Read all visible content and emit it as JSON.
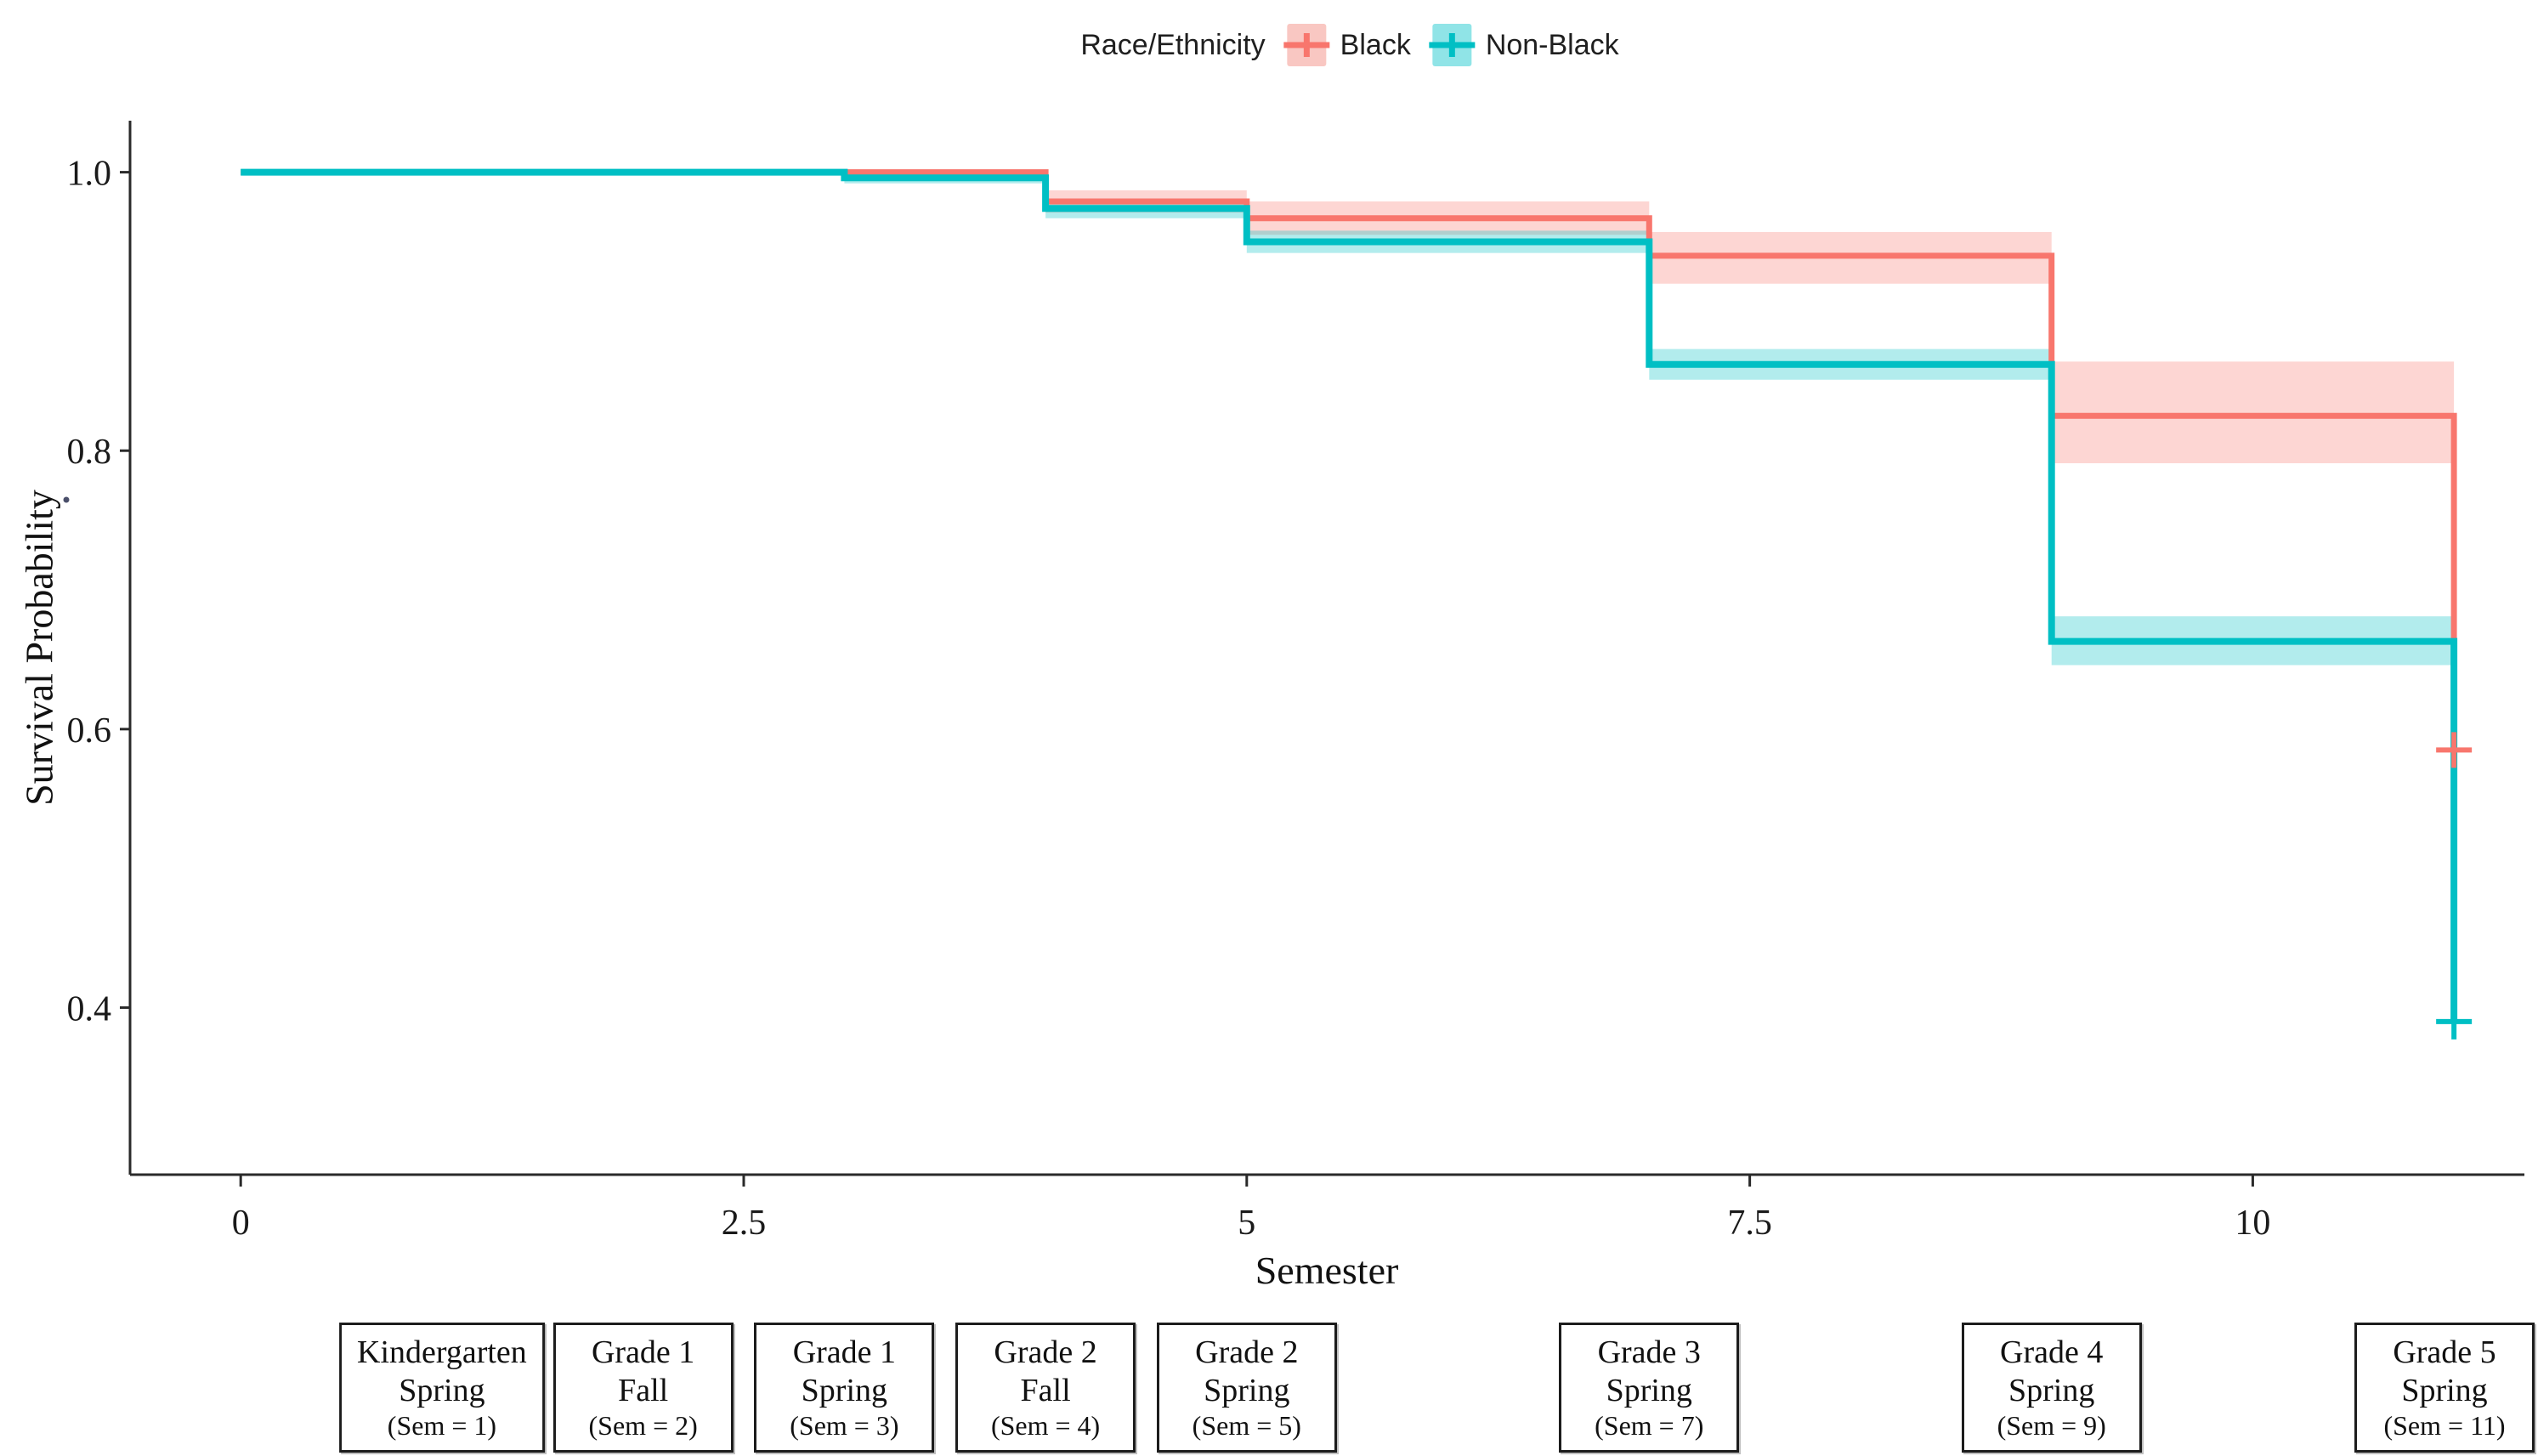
{
  "legend": {
    "title": "Race/Ethnicity",
    "items": [
      {
        "label": "Black",
        "color": "#F8766D",
        "key_fill": "#F9C7C2"
      },
      {
        "label": "Non-Black",
        "color": "#00BFC4",
        "key_fill": "#90E4E7"
      }
    ]
  },
  "chart_data": {
    "type": "line",
    "subtype": "kaplan_meier_step_with_confidence_bands",
    "title": "",
    "xlabel": "Semester",
    "ylabel": "Survival Probability",
    "xlim": [
      -0.55,
      11.35
    ],
    "ylim": [
      0.28,
      1.037
    ],
    "grid": false,
    "legend_position": "top-center",
    "axis_color": "#2a2a2a",
    "tick_label_color": "#1a1a1a",
    "ci_opacity": 0.3,
    "x_ticks": [
      {
        "v": 0,
        "label": "0"
      },
      {
        "v": 2.5,
        "label": "2.5"
      },
      {
        "v": 5,
        "label": "5"
      },
      {
        "v": 7.5,
        "label": "7.5"
      },
      {
        "v": 10,
        "label": "10"
      }
    ],
    "y_ticks": [
      {
        "v": 1.0,
        "label": "1.0"
      },
      {
        "v": 0.8,
        "label": "0.8"
      },
      {
        "v": 0.6,
        "label": "0.6"
      },
      {
        "v": 0.4,
        "label": "0.4"
      }
    ],
    "series": [
      {
        "name": "Black",
        "color": "#F8766D",
        "line_width": 7,
        "steps": [
          {
            "x": 0,
            "surv": 1.0,
            "lower": 1.0,
            "upper": 1.0
          },
          {
            "x": 4,
            "surv": 0.979,
            "lower": 0.971,
            "upper": 0.987
          },
          {
            "x": 5,
            "surv": 0.967,
            "lower": 0.955,
            "upper": 0.979
          },
          {
            "x": 7,
            "surv": 0.94,
            "lower": 0.92,
            "upper": 0.957
          },
          {
            "x": 9,
            "surv": 0.825,
            "lower": 0.791,
            "upper": 0.864
          }
        ],
        "censor": {
          "x": 11,
          "surv": 0.585
        }
      },
      {
        "name": "Non-Black",
        "color": "#00BFC4",
        "line_width": 8,
        "steps": [
          {
            "x": 0,
            "surv": 1.0,
            "lower": 1.0,
            "upper": 1.0
          },
          {
            "x": 3,
            "surv": 0.996,
            "lower": 0.992,
            "upper": 1.0
          },
          {
            "x": 4,
            "surv": 0.974,
            "lower": 0.967,
            "upper": 0.981
          },
          {
            "x": 5,
            "surv": 0.95,
            "lower": 0.942,
            "upper": 0.958
          },
          {
            "x": 7,
            "surv": 0.862,
            "lower": 0.851,
            "upper": 0.873
          },
          {
            "x": 9,
            "surv": 0.663,
            "lower": 0.646,
            "upper": 0.681
          }
        ],
        "censor": {
          "x": 11,
          "surv": 0.39
        }
      }
    ]
  },
  "footer": {
    "boxes": [
      {
        "grade": "Kindergarten",
        "term": "Spring",
        "sem_label": "(Sem = 1)",
        "semester": 1
      },
      {
        "grade": "Grade 1",
        "term": "Fall",
        "sem_label": "(Sem = 2)",
        "semester": 2
      },
      {
        "grade": "Grade 1",
        "term": "Spring",
        "sem_label": "(Sem = 3)",
        "semester": 3
      },
      {
        "grade": "Grade 2",
        "term": "Fall",
        "sem_label": "(Sem = 4)",
        "semester": 4
      },
      {
        "grade": "Grade 2",
        "term": "Spring",
        "sem_label": "(Sem = 5)",
        "semester": 5
      },
      {
        "grade": "Grade 3",
        "term": "Spring",
        "sem_label": "(Sem = 7)",
        "semester": 7
      },
      {
        "grade": "Grade 4",
        "term": "Spring",
        "sem_label": "(Sem = 9)",
        "semester": 9
      },
      {
        "grade": "Grade 5",
        "term": "Spring",
        "sem_label": "(Sem = 11)",
        "semester": 11
      }
    ]
  }
}
